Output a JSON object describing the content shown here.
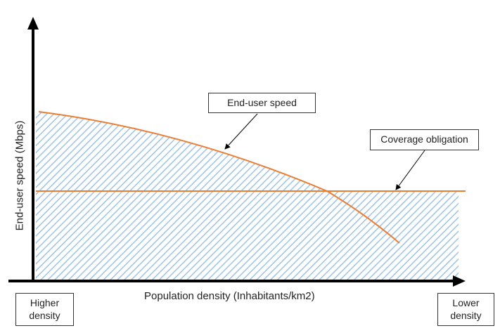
{
  "diagram": {
    "y_axis_label": "End-user speed (Mbps)",
    "x_axis_label": "Population density (Inhabitants/km2)",
    "x_left_end_label": "Higher density",
    "x_right_end_label": "Lower density",
    "callout_speed": "End-user speed",
    "callout_coverage": "Coverage obligation",
    "colors": {
      "curve": "#ED7D31",
      "hatch": "#9DC3E6",
      "axis": "#000000"
    }
  }
}
